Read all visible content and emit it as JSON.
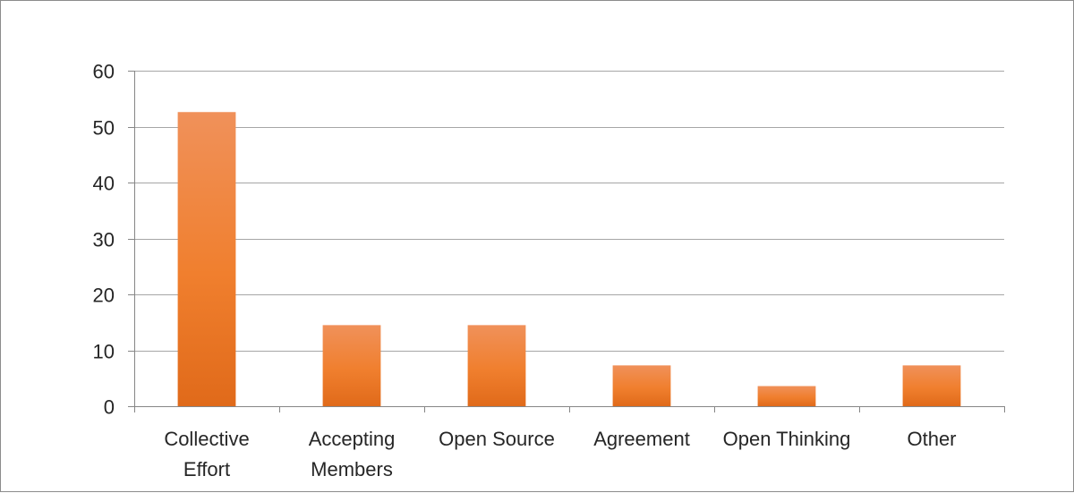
{
  "chart_data": {
    "type": "bar",
    "categories": [
      [
        "Collective",
        "Effort"
      ],
      [
        "Accepting",
        "Members"
      ],
      [
        "Open Source"
      ],
      [
        "Agreement"
      ],
      [
        "Open Thinking"
      ],
      [
        "Other"
      ]
    ],
    "values": [
      52.6,
      14.5,
      14.5,
      7.3,
      3.6,
      7.3
    ],
    "title": "",
    "xlabel": "",
    "ylabel": "",
    "ylim": [
      0,
      60
    ],
    "yticks": [
      0,
      10,
      20,
      30,
      40,
      50,
      60
    ],
    "grid": true,
    "legend": "none",
    "colors": {
      "bar_top": "#f0915a",
      "bar_mid": "#f07f2e",
      "bar_bottom": "#e06a1a",
      "grid": "#a6a6a6",
      "axis": "#868686"
    }
  }
}
